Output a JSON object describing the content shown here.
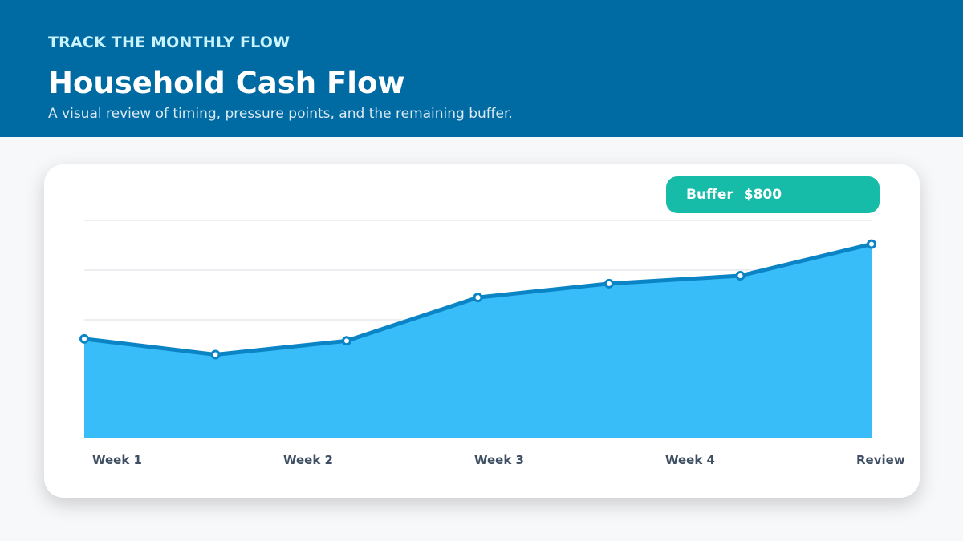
{
  "header": {
    "eyebrow": "TRACK THE MONTHLY FLOW",
    "title": "Household Cash Flow",
    "subtitle": "A visual review of timing, pressure points, and the remaining buffer."
  },
  "badge": {
    "label": "Buffer",
    "value": "$800"
  },
  "colors": {
    "header_bg": "#006aa3",
    "area_fill": "#38bdf8",
    "line": "#0b84c6",
    "badge_bg": "#16bca7"
  },
  "chart_data": {
    "type": "area",
    "title": "",
    "xlabel": "",
    "ylabel": "",
    "x_labels": [
      "Week 1",
      "Week 2",
      "Week 3",
      "Week 4",
      "Review"
    ],
    "series": [
      {
        "values": [
          50,
          42,
          49,
          71,
          78,
          82,
          98
        ]
      }
    ],
    "ylim": [
      0,
      110
    ],
    "grid": true
  }
}
